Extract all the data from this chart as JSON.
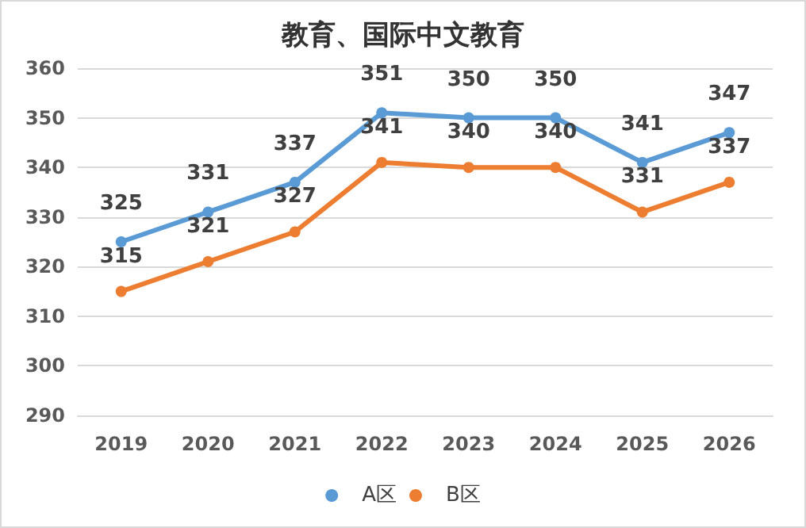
{
  "chart_data": {
    "type": "line",
    "title": "教育、国际中文教育",
    "categories": [
      "2019",
      "2020",
      "2021",
      "2022",
      "2023",
      "2024",
      "2025",
      "2026"
    ],
    "series": [
      {
        "name": "A区",
        "color": "#5b9bd5",
        "values": [
          325,
          331,
          337,
          351,
          350,
          350,
          341,
          347
        ]
      },
      {
        "name": "B区",
        "color": "#ed7d31",
        "values": [
          315,
          321,
          327,
          341,
          340,
          340,
          331,
          337
        ]
      }
    ],
    "ylim": [
      290,
      360
    ],
    "yticks": [
      290,
      300,
      310,
      320,
      330,
      340,
      350,
      360
    ],
    "grid": "y",
    "legend": "bottom",
    "marker": "circle",
    "line_style": "solid",
    "data_labels": true
  }
}
